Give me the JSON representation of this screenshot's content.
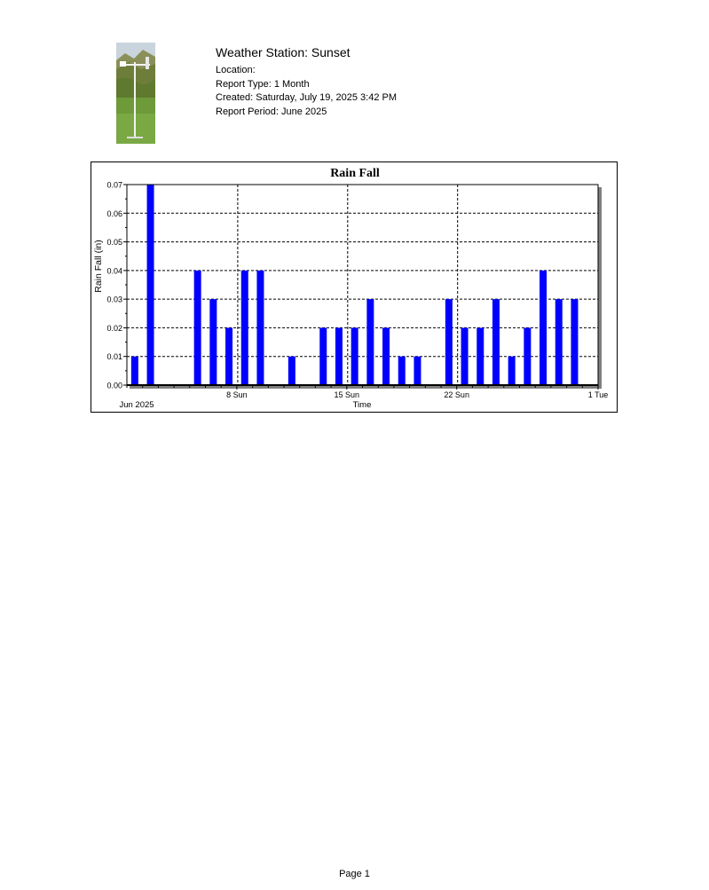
{
  "header": {
    "station_title": "Weather Station: Sunset",
    "location": "Location:",
    "report_type": "Report Type: 1 Month",
    "created": "Created: Saturday, July 19, 2025 3:42 PM",
    "report_period": "Report Period: June 2025"
  },
  "chart_data": {
    "type": "bar",
    "title": "Rain Fall",
    "xlabel": "Time",
    "ylabel": "Rain Fall (in)",
    "start_label": "Jun 2025",
    "y_ticks": [
      "0.00",
      "0.01",
      "0.02",
      "0.03",
      "0.04",
      "0.05",
      "0.06",
      "0.07"
    ],
    "ylim": [
      0,
      0.07
    ],
    "x_ticks": [
      "8 Sun",
      "15 Sun",
      "22 Sun",
      "1 Tue"
    ],
    "grid": true,
    "bar_color": "#0000ff",
    "categories": [
      "Jun 1",
      "Jun 2",
      "Jun 3",
      "Jun 4",
      "Jun 5",
      "Jun 6",
      "Jun 7",
      "Jun 8",
      "Jun 9",
      "Jun 10",
      "Jun 11",
      "Jun 12",
      "Jun 13",
      "Jun 14",
      "Jun 15",
      "Jun 16",
      "Jun 17",
      "Jun 18",
      "Jun 19",
      "Jun 20",
      "Jun 21",
      "Jun 22",
      "Jun 23",
      "Jun 24",
      "Jun 25",
      "Jun 26",
      "Jun 27",
      "Jun 28",
      "Jun 29",
      "Jun 30"
    ],
    "values": [
      0.01,
      0.07,
      0,
      0,
      0.04,
      0.03,
      0.02,
      0.04,
      0.04,
      0,
      0.01,
      0,
      0.02,
      0.02,
      0.02,
      0.03,
      0.02,
      0.01,
      0.01,
      0,
      0.03,
      0.02,
      0.02,
      0.03,
      0.01,
      0.02,
      0.04,
      0.03,
      0.03,
      0
    ]
  },
  "footer": {
    "page": "Page 1"
  }
}
